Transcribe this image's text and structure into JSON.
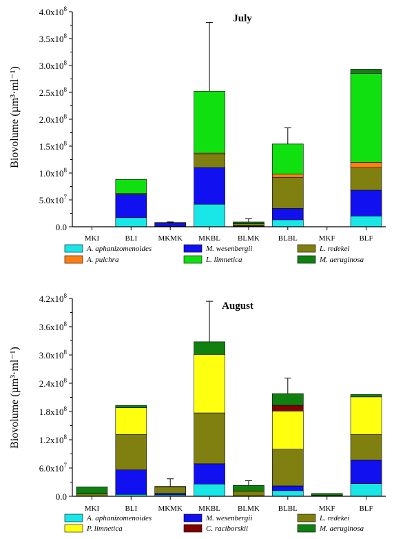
{
  "chart_data": [
    {
      "type": "bar",
      "stacked": true,
      "title": "July",
      "ylabel": "Biovolume (µm³·ml⁻¹)",
      "ylim": [
        0,
        400000000
      ],
      "yticks": [
        0,
        50000000,
        100000000,
        150000000,
        200000000,
        250000000,
        300000000,
        350000000,
        400000000
      ],
      "ytick_labels": [
        {
          "m": "0.0",
          "e": ""
        },
        {
          "m": "5.0x10",
          "e": "7"
        },
        {
          "m": "1.0x10",
          "e": "8"
        },
        {
          "m": "1.5x10",
          "e": "8"
        },
        {
          "m": "2.0x10",
          "e": "8"
        },
        {
          "m": "2.5x10",
          "e": "8"
        },
        {
          "m": "3.0x10",
          "e": "8"
        },
        {
          "m": "3.5x10",
          "e": "8"
        },
        {
          "m": "4.0x10",
          "e": "8"
        }
      ],
      "categories": [
        "MKI",
        "BLI",
        "MKMK",
        "MKBL",
        "BLMK",
        "BLBL",
        "MKF",
        "BLF"
      ],
      "series": [
        {
          "name": "A. aphanizomenoides",
          "color": "#19e6e6",
          "values": [
            0,
            17000000,
            1000000,
            42000000,
            1000000,
            13000000,
            0,
            20000000
          ]
        },
        {
          "name": "M. wesenbergii",
          "color": "#1010f0",
          "values": [
            0,
            43000000,
            6000000,
            68000000,
            1000000,
            21000000,
            0,
            48000000
          ]
        },
        {
          "name": "L. redekei",
          "color": "#808010",
          "values": [
            0,
            2000000,
            1000000,
            25000000,
            4000000,
            58000000,
            0,
            42000000
          ]
        },
        {
          "name": "A. pulchra",
          "color": "#ff7f10",
          "values": [
            0,
            0,
            0,
            2000000,
            0,
            6000000,
            0,
            10000000
          ]
        },
        {
          "name": "L. limnetica",
          "color": "#10e010",
          "values": [
            0,
            26000000,
            0,
            115000000,
            0,
            56000000,
            0,
            165000000
          ]
        },
        {
          "name": "M. aeruginosa",
          "color": "#108010",
          "values": [
            0,
            0,
            0,
            0,
            3000000,
            0,
            0,
            8000000
          ]
        }
      ],
      "error_bars": [
        null,
        null,
        1000000,
        128000000,
        6000000,
        30000000,
        null,
        null
      ],
      "legend": "bottom"
    },
    {
      "type": "bar",
      "stacked": true,
      "title": "August",
      "ylabel": "Biovolume (µm³·ml⁻¹)",
      "ylim": [
        0,
        420000000
      ],
      "yticks": [
        0,
        60000000,
        120000000,
        180000000,
        240000000,
        300000000,
        360000000,
        420000000
      ],
      "ytick_labels": [
        {
          "m": "0.0",
          "e": ""
        },
        {
          "m": "6.0x10",
          "e": "7"
        },
        {
          "m": "1.2x10",
          "e": "8"
        },
        {
          "m": "1.8x10",
          "e": "8"
        },
        {
          "m": "2.4x10",
          "e": "8"
        },
        {
          "m": "3.0x10",
          "e": "8"
        },
        {
          "m": "3.6x10",
          "e": "8"
        },
        {
          "m": "4.2x10",
          "e": "8"
        }
      ],
      "categories": [
        "MKI",
        "BLI",
        "MKMK",
        "MKBL",
        "BLMK",
        "BLBL",
        "MKF",
        "BLF"
      ],
      "series": [
        {
          "name": "A. aphanizomenoides",
          "color": "#19e6e6",
          "values": [
            0,
            4000000,
            3000000,
            26000000,
            1000000,
            12000000,
            0,
            27000000
          ]
        },
        {
          "name": "M. wesenbergii",
          "color": "#1010f0",
          "values": [
            0,
            52000000,
            3000000,
            43000000,
            0,
            10000000,
            0,
            50000000
          ]
        },
        {
          "name": "L. redekei",
          "color": "#808010",
          "values": [
            5000000,
            75000000,
            14000000,
            108000000,
            10000000,
            78000000,
            2000000,
            54000000
          ]
        },
        {
          "name": "P. limnetica",
          "color": "#ffff10",
          "values": [
            0,
            57000000,
            0,
            124000000,
            0,
            81000000,
            0,
            80000000
          ]
        },
        {
          "name": "C. raciborskii",
          "color": "#800000",
          "values": [
            0,
            0,
            0,
            0,
            0,
            12000000,
            0,
            0
          ]
        },
        {
          "name": "M. aeruginosa",
          "color": "#108010",
          "values": [
            15000000,
            5000000,
            1000000,
            27000000,
            12000000,
            25000000,
            4000000,
            5000000
          ]
        }
      ],
      "error_bars": [
        null,
        null,
        16000000,
        86000000,
        10000000,
        33000000,
        null,
        null
      ],
      "legend": "bottom"
    }
  ]
}
